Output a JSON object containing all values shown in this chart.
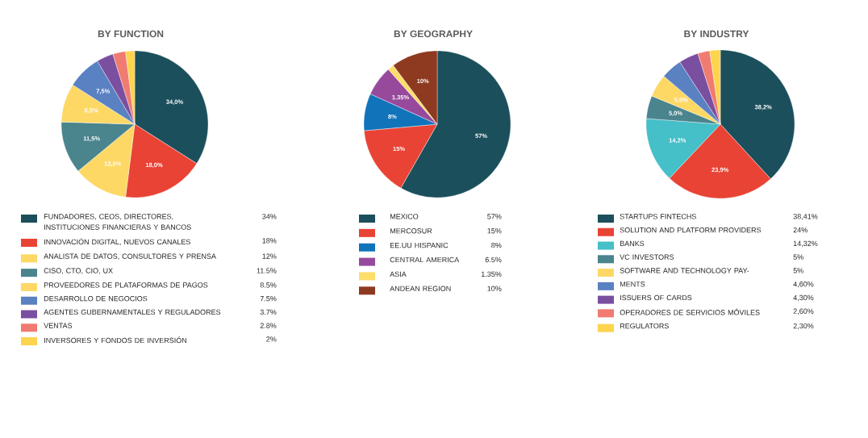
{
  "chart_data": [
    {
      "type": "pie",
      "title": "BY FUNCTION",
      "legend": "bottom",
      "categories": [
        "FUNDADORES, CEOS, DIRECTORES, INSTITUCIONES FINANCIERAS Y BANCOS",
        "INNOVACIÓN DIGITAL, NUEVOS CANALES",
        "ANALISTA DE DATOS, CONSULTORES Y PRENSA",
        "CISO, CTO, CIO, UX",
        "PROVEEDORES DE PLATAFORMAS DE PAGOS",
        "DESARROLLO DE NEGOCIOS",
        "AGENTES GUBERNAMENTALES Y REGULADORES",
        "VENTAS",
        "INVERSORES Y FONDOS DE INVERSIÓN"
      ],
      "values": [
        34,
        18,
        12,
        11.5,
        8.5,
        7.5,
        3.7,
        2.8,
        2
      ],
      "value_labels": [
        "34,0%",
        "18,0%",
        "12,0%",
        "11,5%",
        "8,5%",
        "7,5%",
        null,
        null,
        null
      ],
      "colors": [
        "#1b4f5b",
        "#e94335",
        "#fdd865",
        "#4a848d",
        "#fdd865",
        "#5a81c2",
        "#7a4f9f",
        "#f07b70",
        "#fdd44d"
      ],
      "annotations": [
        "34%",
        "18%",
        "12%",
        "11.5%",
        "8.5%",
        "7.5%",
        "3.7%",
        "2.8%",
        "2%"
      ]
    },
    {
      "type": "pie",
      "title": "BY GEOGRAPHY",
      "legend": "bottom",
      "categories": [
        "MEXICO",
        "MERCOSUR",
        "EE.UU HISPANIC",
        "CENTRAL AMERICA",
        "ASIA",
        "ANDEAN REGION"
      ],
      "values": [
        57,
        15,
        8,
        6.5,
        1.35,
        10
      ],
      "value_labels": [
        "57%",
        "15%",
        "8%",
        null,
        null,
        "10%"
      ],
      "colors": [
        "#1b4f5b",
        "#e94335",
        "#1173ba",
        "#974a9c",
        "#fedd6a",
        "#8d3a20"
      ],
      "annotations": [
        "57%",
        "15%",
        "8%",
        "6.5%",
        "1.35%",
        "10%",
        {
          "text": "1.35%",
          "x": "CENTRAL AMERICA"
        }
      ]
    },
    {
      "type": "pie",
      "title": "BY INDUSTRY",
      "legend": "bottom",
      "categories": [
        "STARTUPS FINTECHS",
        "SOLUTION AND PLATFORM PROVIDERS",
        "BANKS",
        "VC INVESTORS",
        "SOFTWARE AND TECHNOLOGY PAY-",
        "MENTS",
        "ISSUERS OF CARDS",
        "OPERADORES DE SERVICIOS MÓVILES",
        "REGULATORS"
      ],
      "values": [
        38.2,
        23.9,
        14.2,
        5,
        5,
        4.6,
        4.3,
        2.6,
        2.3
      ],
      "value_labels": [
        "38,2%",
        "23,9%",
        "14,2%",
        "5,0%",
        "5,0%",
        null,
        null,
        null,
        null
      ],
      "colors": [
        "#1b4f5b",
        "#e94335",
        "#45bfc8",
        "#4a848d",
        "#fdd865",
        "#5a81c2",
        "#7a4f9f",
        "#f07b70",
        "#fdd44d"
      ],
      "annotations": [
        "38,41%",
        "24%",
        "14,32%",
        "5%",
        "5%",
        "4,60%",
        "4,30%",
        "2,60%",
        "2,30%"
      ]
    }
  ]
}
